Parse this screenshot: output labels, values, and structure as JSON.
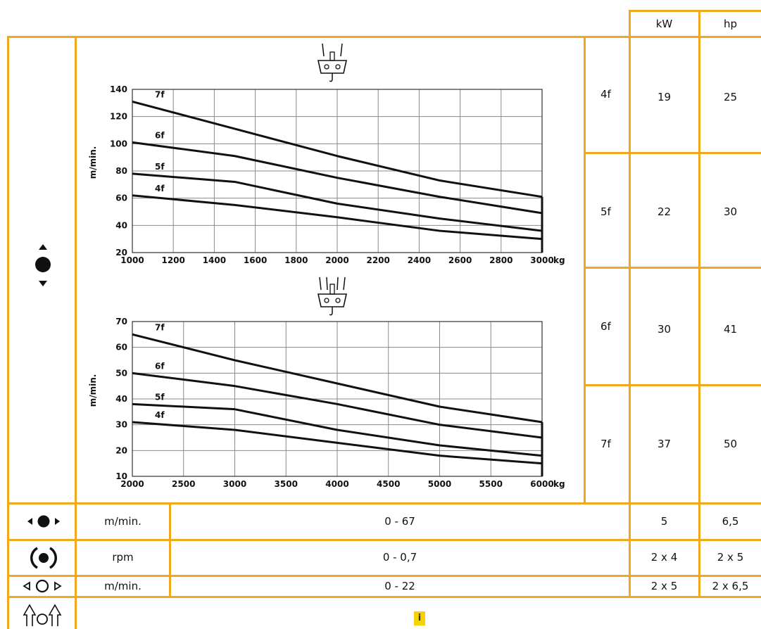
{
  "header": {
    "kw": "kW",
    "hp": "hp"
  },
  "gears": [
    {
      "label": "4f",
      "kw": "19",
      "hp": "25"
    },
    {
      "label": "5f",
      "kw": "22",
      "hp": "30"
    },
    {
      "label": "6f",
      "kw": "30",
      "hp": "41"
    },
    {
      "label": "7f",
      "kw": "37",
      "hp": "50"
    }
  ],
  "rows": [
    {
      "icon": "trolley-travel-icon",
      "unit": "m/min.",
      "range": "0 - 67",
      "kw": "5",
      "hp": "6,5"
    },
    {
      "icon": "slewing-icon",
      "unit": "rpm",
      "range": "0 - 0,7",
      "kw": "2 x 4",
      "hp": "2 x 5"
    },
    {
      "icon": "crane-travel-icon",
      "unit": "m/min.",
      "range": "0 - 22",
      "kw": "2 x 5",
      "hp": "2 x 6,5"
    }
  ],
  "info_label": "i",
  "colors": {
    "grid_border": "#f2a81d",
    "info_badge": "#f5d200"
  },
  "chart_data": [
    {
      "type": "line",
      "icon": "two-fall-hook-icon",
      "ylabel": "m/min.",
      "xunit": "kg",
      "x": [
        1000,
        1500,
        2000,
        2500,
        3000
      ],
      "xlim": [
        1000,
        3000
      ],
      "ylim": [
        20,
        140
      ],
      "xticks": [
        1000,
        1200,
        1400,
        1600,
        1800,
        2000,
        2200,
        2400,
        2600,
        2800,
        3000
      ],
      "yticks": [
        20,
        40,
        60,
        80,
        100,
        120,
        140
      ],
      "grid": true,
      "series": [
        {
          "name": "7f",
          "values": [
            131,
            111,
            91,
            73,
            61
          ]
        },
        {
          "name": "6f",
          "values": [
            101,
            91,
            75,
            61,
            49
          ]
        },
        {
          "name": "5f",
          "values": [
            78,
            72,
            56,
            45,
            36
          ]
        },
        {
          "name": "4f",
          "values": [
            62,
            55,
            46,
            36,
            30
          ]
        }
      ]
    },
    {
      "type": "line",
      "icon": "four-fall-hook-icon",
      "ylabel": "m/min.",
      "xunit": "kg",
      "x": [
        2000,
        3000,
        4000,
        5000,
        6000
      ],
      "xlim": [
        2000,
        6000
      ],
      "ylim": [
        10,
        70
      ],
      "xticks": [
        2000,
        2500,
        3000,
        3500,
        4000,
        4500,
        5000,
        5500,
        6000
      ],
      "yticks": [
        10,
        20,
        30,
        40,
        50,
        60,
        70
      ],
      "grid": true,
      "series": [
        {
          "name": "7f",
          "values": [
            65,
            55,
            46,
            37,
            31
          ]
        },
        {
          "name": "6f",
          "values": [
            50,
            45,
            38,
            30,
            25
          ]
        },
        {
          "name": "5f",
          "values": [
            38,
            36,
            28,
            22,
            18
          ]
        },
        {
          "name": "4f",
          "values": [
            31,
            28,
            23,
            18,
            15
          ]
        }
      ]
    }
  ]
}
